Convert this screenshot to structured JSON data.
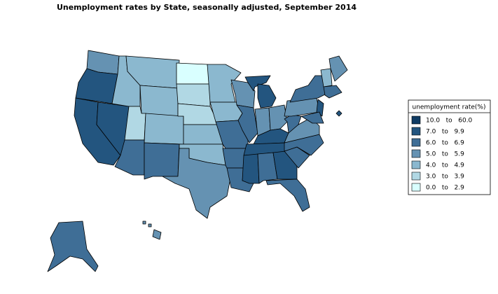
{
  "title": "Unemployment rates by State, seasonally adjusted,  September  2014",
  "legend": {
    "title": "unemployment rate(%)",
    "items": [
      {
        "label": "10.0   to   60.0",
        "color": "#0f3b63"
      },
      {
        "label": "7.0   to   9.9",
        "color": "#23557f"
      },
      {
        "label": "6.0   to   6.9",
        "color": "#3f6e96"
      },
      {
        "label": "5.0   to   5.9",
        "color": "#6592b2"
      },
      {
        "label": "4.0   to   4.9",
        "color": "#8bb8cf"
      },
      {
        "label": "3.0   to   3.9",
        "color": "#b1d8e4"
      },
      {
        "label": "0.0   to   2.9",
        "color": "#d9ffff"
      }
    ]
  }
}
